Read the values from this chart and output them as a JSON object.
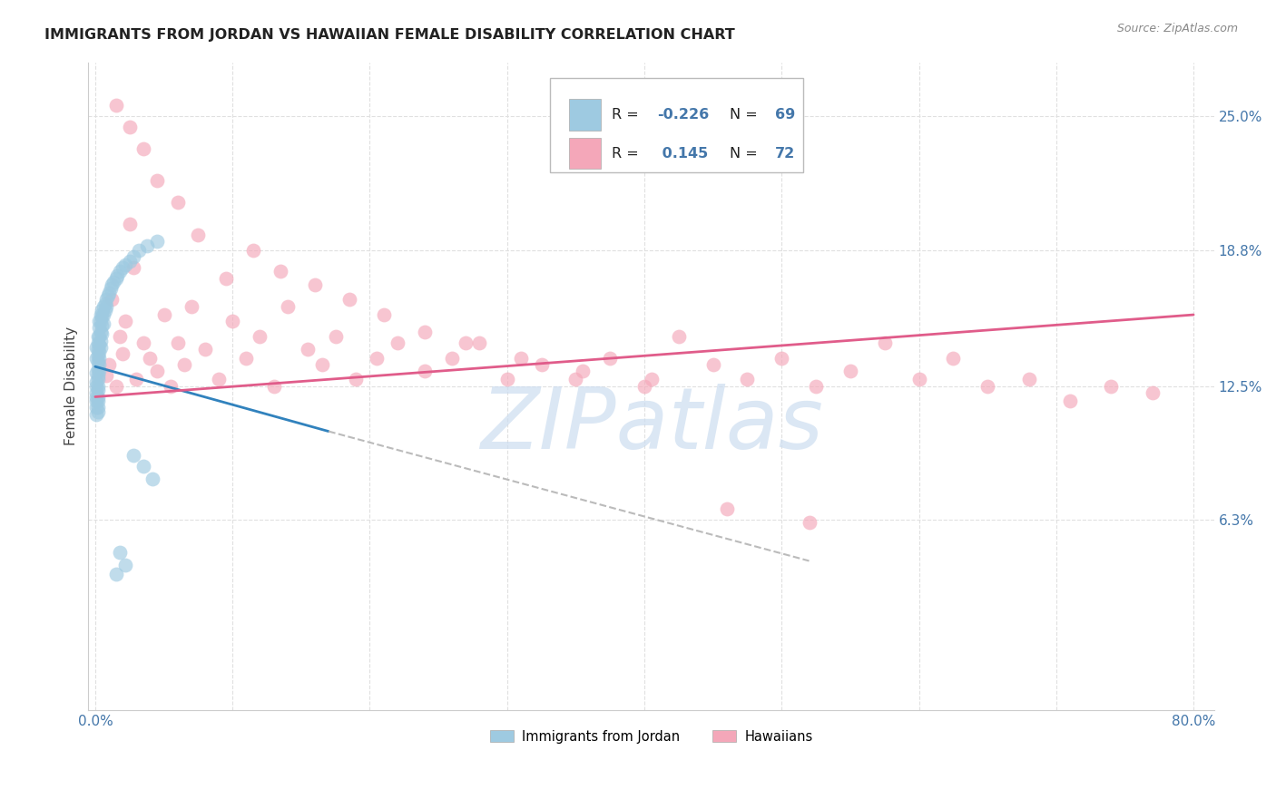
{
  "title": "IMMIGRANTS FROM JORDAN VS HAWAIIAN FEMALE DISABILITY CORRELATION CHART",
  "source": "Source: ZipAtlas.com",
  "ylabel": "Female Disability",
  "y_ticks": [
    0.063,
    0.125,
    0.188,
    0.25
  ],
  "y_tick_labels": [
    "6.3%",
    "12.5%",
    "18.8%",
    "25.0%"
  ],
  "xlim": [
    -0.005,
    0.815
  ],
  "ylim": [
    -0.025,
    0.275
  ],
  "color_blue": "#9ecae1",
  "color_pink": "#f4a7b9",
  "color_blue_line": "#3182bd",
  "color_pink_line": "#e05c8a",
  "color_dashed": "#bbbbbb",
  "background": "#ffffff",
  "watermark": "ZIPatlas",
  "watermark_color": "#ccddf0",
  "grid_color": "#e0e0e0",
  "tick_color": "#4477aa",
  "title_color": "#222222",
  "source_color": "#888888",
  "jordan_x": [
    0.001,
    0.001,
    0.001,
    0.001,
    0.001,
    0.001,
    0.001,
    0.001,
    0.001,
    0.001,
    0.002,
    0.002,
    0.002,
    0.002,
    0.002,
    0.002,
    0.002,
    0.002,
    0.002,
    0.002,
    0.002,
    0.002,
    0.002,
    0.002,
    0.003,
    0.003,
    0.003,
    0.003,
    0.003,
    0.003,
    0.003,
    0.003,
    0.004,
    0.004,
    0.004,
    0.004,
    0.004,
    0.005,
    0.005,
    0.005,
    0.005,
    0.006,
    0.006,
    0.006,
    0.007,
    0.007,
    0.008,
    0.008,
    0.009,
    0.01,
    0.011,
    0.012,
    0.013,
    0.015,
    0.016,
    0.018,
    0.02,
    0.022,
    0.025,
    0.028,
    0.032,
    0.038,
    0.045,
    0.028,
    0.035,
    0.042,
    0.018,
    0.022,
    0.015
  ],
  "jordan_y": [
    0.138,
    0.143,
    0.131,
    0.127,
    0.125,
    0.122,
    0.12,
    0.118,
    0.115,
    0.112,
    0.148,
    0.145,
    0.142,
    0.139,
    0.136,
    0.133,
    0.13,
    0.128,
    0.125,
    0.123,
    0.12,
    0.118,
    0.115,
    0.113,
    0.155,
    0.152,
    0.148,
    0.144,
    0.141,
    0.138,
    0.135,
    0.132,
    0.158,
    0.155,
    0.15,
    0.146,
    0.143,
    0.16,
    0.157,
    0.153,
    0.149,
    0.162,
    0.158,
    0.154,
    0.163,
    0.16,
    0.165,
    0.162,
    0.167,
    0.168,
    0.17,
    0.172,
    0.173,
    0.175,
    0.176,
    0.178,
    0.18,
    0.181,
    0.183,
    0.185,
    0.188,
    0.19,
    0.192,
    0.093,
    0.088,
    0.082,
    0.048,
    0.042,
    0.038
  ],
  "hawaiian_x": [
    0.008,
    0.01,
    0.012,
    0.015,
    0.018,
    0.02,
    0.022,
    0.025,
    0.028,
    0.03,
    0.035,
    0.04,
    0.045,
    0.05,
    0.055,
    0.06,
    0.065,
    0.07,
    0.08,
    0.09,
    0.1,
    0.11,
    0.12,
    0.13,
    0.14,
    0.155,
    0.165,
    0.175,
    0.19,
    0.205,
    0.22,
    0.24,
    0.26,
    0.28,
    0.3,
    0.325,
    0.35,
    0.375,
    0.4,
    0.425,
    0.45,
    0.475,
    0.5,
    0.525,
    0.55,
    0.575,
    0.6,
    0.625,
    0.65,
    0.68,
    0.71,
    0.74,
    0.77,
    0.015,
    0.025,
    0.035,
    0.045,
    0.06,
    0.075,
    0.095,
    0.115,
    0.135,
    0.16,
    0.185,
    0.21,
    0.24,
    0.27,
    0.31,
    0.355,
    0.405,
    0.46,
    0.52
  ],
  "hawaiian_y": [
    0.13,
    0.135,
    0.165,
    0.125,
    0.148,
    0.14,
    0.155,
    0.2,
    0.18,
    0.128,
    0.145,
    0.138,
    0.132,
    0.158,
    0.125,
    0.145,
    0.135,
    0.162,
    0.142,
    0.128,
    0.155,
    0.138,
    0.148,
    0.125,
    0.162,
    0.142,
    0.135,
    0.148,
    0.128,
    0.138,
    0.145,
    0.132,
    0.138,
    0.145,
    0.128,
    0.135,
    0.128,
    0.138,
    0.125,
    0.148,
    0.135,
    0.128,
    0.138,
    0.125,
    0.132,
    0.145,
    0.128,
    0.138,
    0.125,
    0.128,
    0.118,
    0.125,
    0.122,
    0.255,
    0.245,
    0.235,
    0.22,
    0.21,
    0.195,
    0.175,
    0.188,
    0.178,
    0.172,
    0.165,
    0.158,
    0.15,
    0.145,
    0.138,
    0.132,
    0.128,
    0.068,
    0.062
  ],
  "blue_line_x0": 0.0,
  "blue_line_x1": 0.17,
  "blue_line_y0": 0.134,
  "blue_line_y1": 0.104,
  "dash_line_x0": 0.17,
  "dash_line_x1": 0.52,
  "dash_line_y0": 0.104,
  "dash_line_y1": 0.044,
  "pink_line_x0": 0.0,
  "pink_line_x1": 0.8,
  "pink_line_y0": 0.12,
  "pink_line_y1": 0.158
}
